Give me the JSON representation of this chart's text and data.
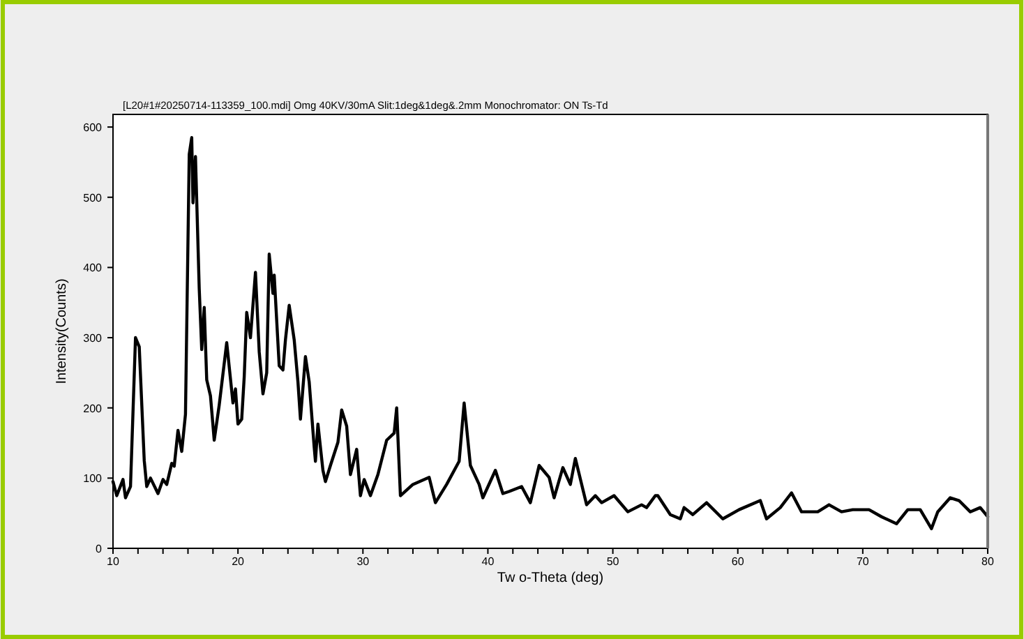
{
  "chart_data": {
    "type": "line",
    "title": "[L20#1#20250714-113359_100.mdi] Omg 40KV/30mA Slit:1deg&1deg&.2mm Monochromator: ON Ts-Td",
    "xlabel": "Tw o-Theta (deg)",
    "ylabel": "Intensity(Counts)",
    "xlim": [
      10,
      80
    ],
    "ylim": [
      0,
      618
    ],
    "xticks": [
      10,
      {
        "value": 12,
        "label": null
      },
      {
        "value": 14,
        "label": null
      },
      {
        "value": 16,
        "label": null
      },
      {
        "value": 18,
        "label": null
      },
      20,
      {
        "value": 22,
        "label": null
      },
      {
        "value": 24,
        "label": null
      },
      {
        "value": 26,
        "label": null
      },
      {
        "value": 28,
        "label": null
      },
      30,
      {
        "value": 32,
        "label": null
      },
      {
        "value": 34,
        "label": null
      },
      {
        "value": 36,
        "label": null
      },
      {
        "value": 38,
        "label": null
      },
      40,
      {
        "value": 42,
        "label": null
      },
      {
        "value": 44,
        "label": null
      },
      {
        "value": 46,
        "label": null
      },
      {
        "value": 48,
        "label": null
      },
      50,
      {
        "value": 52,
        "label": null
      },
      {
        "value": 54,
        "label": null
      },
      {
        "value": 56,
        "label": null
      },
      {
        "value": 58,
        "label": null
      },
      60,
      {
        "value": 62,
        "label": null
      },
      {
        "value": 64,
        "label": null
      },
      {
        "value": 66,
        "label": null
      },
      {
        "value": 68,
        "label": null
      },
      70,
      {
        "value": 72,
        "label": null
      },
      {
        "value": 74,
        "label": null
      },
      {
        "value": 76,
        "label": null
      },
      {
        "value": 78,
        "label": null
      },
      80
    ],
    "yticks": [
      0,
      100,
      200,
      300,
      400,
      500,
      600
    ],
    "grid": false,
    "series": [
      {
        "color": "#000000",
        "x": [
          10,
          10.3,
          10.8,
          11,
          11.4,
          11.8,
          12.1,
          12.5,
          12.7,
          13,
          13.6,
          14,
          14.3,
          14.7,
          14.9,
          15.2,
          15.5,
          15.8,
          16.1,
          16.3,
          16.4,
          16.6,
          16.9,
          17.1,
          17.3,
          17.5,
          17.8,
          18.1,
          18.5,
          19.1,
          19.6,
          19.8,
          20,
          20.3,
          20.5,
          20.7,
          21,
          21.4,
          21.7,
          22,
          22.3,
          22.5,
          22.8,
          22.9,
          23.3,
          23.6,
          23.8,
          24.1,
          24.5,
          24.8,
          25,
          25.4,
          25.7,
          26.1,
          26.2,
          26.4,
          26.8,
          27,
          27.4,
          28,
          28.3,
          28.7,
          29,
          29.5,
          29.8,
          30.1,
          30.6,
          31.2,
          31.9,
          32.5,
          32.7,
          33,
          34,
          35.3,
          35.8,
          36.7,
          37.7,
          38.1,
          38.6,
          39.3,
          39.6,
          40.6,
          41.2,
          41.7,
          42.7,
          43.4,
          44.1,
          44.9,
          45.3,
          46,
          46.6,
          47,
          47.9,
          48.6,
          49.1,
          50.1,
          51.2,
          52.3,
          52.7,
          53.4,
          53.6,
          54.6,
          55.4,
          55.7,
          56.4,
          57.5,
          58.8,
          60.1,
          61.8,
          62.3,
          63.4,
          64.3,
          65.1,
          66.4,
          67.3,
          68.3,
          69.2,
          70.5,
          71.5,
          72.7,
          73.6,
          74.6,
          75.5,
          76,
          77,
          77.7,
          78.6,
          79.4,
          80
        ],
        "values": [
          95,
          75,
          98,
          72,
          88,
          300,
          287,
          125,
          88,
          100,
          78,
          98,
          91,
          121,
          117,
          168,
          138,
          191,
          561,
          585,
          492,
          558,
          370,
          283,
          343,
          240,
          217,
          154,
          204,
          293,
          207,
          227,
          177,
          184,
          244,
          336,
          300,
          393,
          280,
          220,
          250,
          419,
          363,
          389,
          260,
          254,
          297,
          346,
          297,
          237,
          184,
          273,
          237,
          144,
          124,
          177,
          111,
          95,
          118,
          151,
          197,
          174,
          105,
          141,
          75,
          98,
          75,
          105,
          154,
          164,
          200,
          75,
          91,
          101,
          65,
          91,
          124,
          207,
          118,
          91,
          72,
          111,
          78,
          81,
          88,
          65,
          118,
          101,
          72,
          115,
          91,
          128,
          62,
          75,
          65,
          75,
          52,
          62,
          58,
          75,
          75,
          48,
          42,
          58,
          48,
          65,
          42,
          55,
          68,
          42,
          58,
          79,
          52,
          52,
          62,
          52,
          55,
          55,
          45,
          35,
          55,
          55,
          28,
          52,
          72,
          68,
          52,
          58,
          45
        ]
      }
    ]
  }
}
